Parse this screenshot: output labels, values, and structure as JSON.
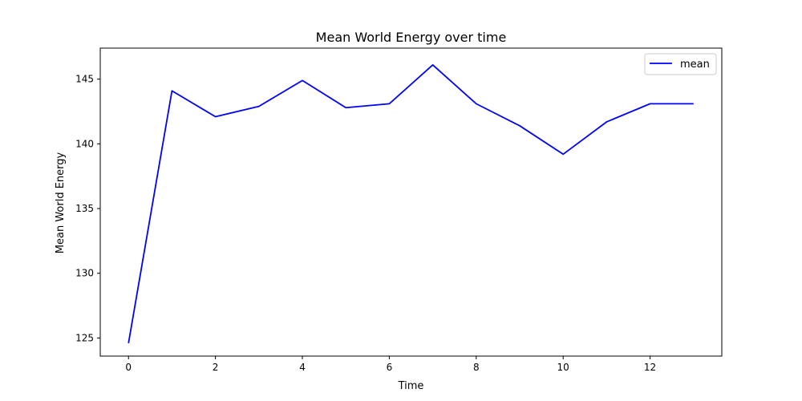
{
  "chart_data": {
    "type": "line",
    "title": "Mean World Energy over time",
    "xlabel": "Time",
    "ylabel": "Mean World Energy",
    "xlim": [
      -0.65,
      13.65
    ],
    "ylim": [
      123.6,
      147.4
    ],
    "xticks": [
      0,
      2,
      4,
      6,
      8,
      10,
      12
    ],
    "yticks": [
      125,
      130,
      135,
      140,
      145
    ],
    "grid": false,
    "legend": "top-right",
    "series": [
      {
        "name": "mean",
        "color": "#0000ff",
        "x": [
          0,
          1,
          2,
          3,
          4,
          5,
          6,
          7,
          8,
          9,
          10,
          11,
          12,
          13
        ],
        "values": [
          124.6,
          144.1,
          142.1,
          142.9,
          144.9,
          142.8,
          143.1,
          146.1,
          143.1,
          141.4,
          139.2,
          141.7,
          143.1,
          143.1
        ]
      }
    ]
  }
}
